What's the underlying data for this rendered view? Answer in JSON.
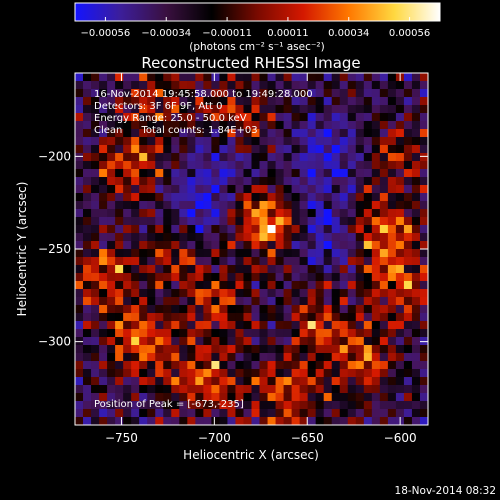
{
  "chart_data": {
    "type": "heatmap",
    "title": "Reconstructed RHESSI Image",
    "xlabel": "Heliocentric X (arcsec)",
    "ylabel": "Heliocentric Y (arcsec)",
    "xlim": [
      -775,
      -585
    ],
    "ylim": [
      -345,
      -155
    ],
    "x_ticks": [
      -750,
      -700,
      -650,
      -600
    ],
    "x_tick_labels": [
      "−750",
      "−700",
      "−650",
      "−600"
    ],
    "y_ticks": [
      -200,
      -250,
      -300
    ],
    "y_tick_labels": [
      "−200",
      "−250",
      "−300"
    ],
    "colorbar": {
      "range": [
        -0.00056,
        0.00056
      ],
      "tick_labels": [
        "−0.00056",
        "−0.00034",
        "−0.00011",
        "0.00011",
        "0.00034",
        "0.00056"
      ],
      "unit_label": "(photons cm⁻² s⁻¹ asec⁻²)",
      "colors": [
        "#1414ff",
        "#3c1e9a",
        "#3a1040",
        "#000000",
        "#7a0a00",
        "#d41800",
        "#ff7800",
        "#ffd840",
        "#ffffff"
      ]
    },
    "annotations": [
      "16-Nov-2014 19:45:58.000 to 19:49:28.000",
      "Detectors: 3F 6F 9F, Att 0",
      "Energy Range: 25.0 - 50.0 keV",
      "Clean      Total counts: 1.84E+03"
    ],
    "peak_label": "Position of Peak = [-673,-235]",
    "peak": [
      -673,
      -235
    ],
    "hot_spots": [
      {
        "x": -673,
        "y": -235,
        "value": 0.00056
      },
      {
        "x": -610,
        "y": -240,
        "value": 0.00045
      },
      {
        "x": -745,
        "y": -205,
        "value": 0.0004
      },
      {
        "x": -760,
        "y": -265,
        "value": 0.00038
      },
      {
        "x": -740,
        "y": -300,
        "value": 0.0004
      },
      {
        "x": -705,
        "y": -320,
        "value": 0.0004
      },
      {
        "x": -660,
        "y": -330,
        "value": 0.00038
      },
      {
        "x": -620,
        "y": -310,
        "value": 0.00036
      },
      {
        "x": -600,
        "y": -270,
        "value": 0.00034
      },
      {
        "x": -700,
        "y": -280,
        "value": 0.0003
      },
      {
        "x": -645,
        "y": -290,
        "value": 0.0003
      },
      {
        "x": -690,
        "y": -180,
        "value": 0.0003
      },
      {
        "x": -730,
        "y": -170,
        "value": 0.00028
      },
      {
        "x": -720,
        "y": -250,
        "value": 0.00028
      },
      {
        "x": -600,
        "y": -200,
        "value": 0.00024
      }
    ],
    "cold_spots": [
      {
        "x": -705,
        "y": -230,
        "value": -0.00034
      },
      {
        "x": -640,
        "y": -240,
        "value": -0.00034
      },
      {
        "x": -640,
        "y": -200,
        "value": -0.00028
      },
      {
        "x": -700,
        "y": -200,
        "value": -0.00024
      }
    ]
  },
  "footer": {
    "timestamp": "18-Nov-2014 08:32"
  }
}
